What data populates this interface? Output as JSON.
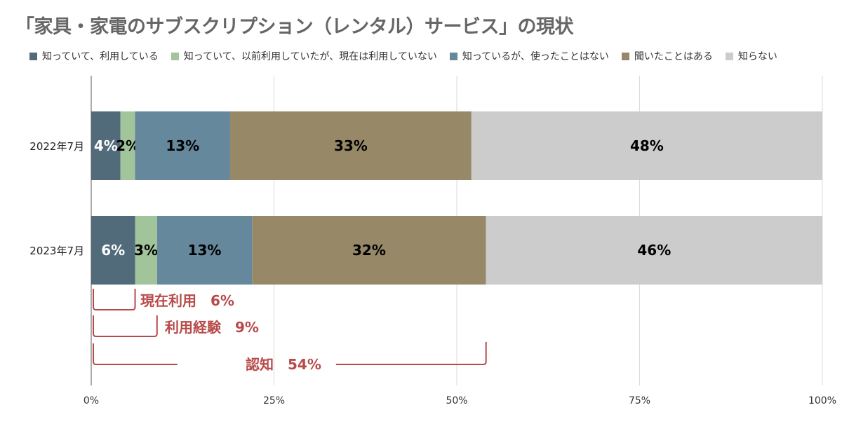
{
  "title": "「家具・家電のサブスクリプション（レンタル）サービス」の現状",
  "chart_data": {
    "type": "bar",
    "orientation": "horizontal",
    "stacked": true,
    "categories": [
      "2022年7月",
      "2023年7月"
    ],
    "series": [
      {
        "name": "知っていて、利用している",
        "color": "#516b7b",
        "values": [
          4,
          6
        ],
        "labels": [
          "4%",
          "6%"
        ],
        "label_color": "#ffffff"
      },
      {
        "name": "知っていて、以前利用していたが、現在は利用していない",
        "color": "#a2c49b",
        "values": [
          2,
          3
        ],
        "labels": [
          "2%",
          "3%"
        ],
        "label_color": "#000000"
      },
      {
        "name": "知っているが、使ったことはない",
        "color": "#66889c",
        "values": [
          13,
          13
        ],
        "labels": [
          "13%",
          "13%"
        ],
        "label_color": "#000000"
      },
      {
        "name": "聞いたことはある",
        "color": "#978967",
        "values": [
          33,
          32
        ],
        "labels": [
          "33%",
          "32%"
        ],
        "label_color": "#000000"
      },
      {
        "name": "知らない",
        "color": "#cccccc",
        "values": [
          48,
          46
        ],
        "labels": [
          "48%",
          "46%"
        ],
        "label_color": "#000000"
      }
    ],
    "xlim": [
      0,
      100
    ],
    "x_ticks": [
      "0%",
      "25%",
      "50%",
      "75%",
      "100%"
    ],
    "grid": true,
    "legend_position": "top",
    "annotations": [
      {
        "label": "現在利用",
        "value": "6%",
        "end": 6
      },
      {
        "label": "利用経験",
        "value": "9%",
        "end": 9
      },
      {
        "label": "認知",
        "value": "54%",
        "end": 54
      }
    ],
    "annotation_color": "#b84a4a"
  }
}
